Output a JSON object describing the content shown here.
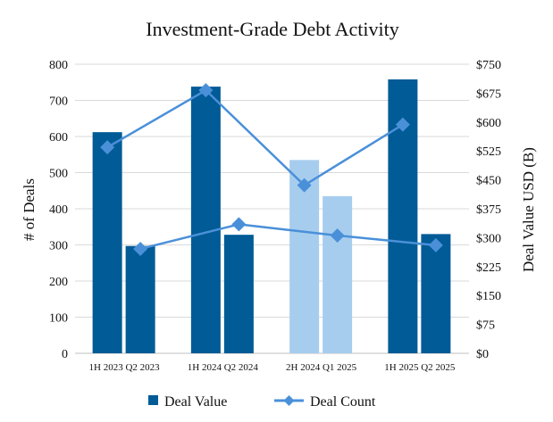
{
  "chart_data": {
    "type": "bar",
    "title": "Investment-Grade Debt Activity",
    "ylabel": "# of Deals",
    "y2label": "Deal Value USD (B)",
    "xlabel": "",
    "ylim": [
      0,
      800
    ],
    "y2lim": [
      0,
      750
    ],
    "left_ticks": [
      "0",
      "100",
      "200",
      "300",
      "400",
      "500",
      "600",
      "700",
      "800"
    ],
    "right_ticks": [
      "$0",
      "$75",
      "$150",
      "$225",
      "$300",
      "$375",
      "$450",
      "$525",
      "$600",
      "$675",
      "$750"
    ],
    "category_labels": [
      "1H 2023 Q2 2023",
      "1H 2024 Q2 2024",
      "2H 2024 Q1 2025",
      "1H 2025 Q2 2025"
    ],
    "categories": [
      "1H 2023",
      "Q2 2023",
      "1H 2024",
      "Q2 2024",
      "2H 2024",
      "Q1 2025",
      "1H 2025",
      "Q2 2025"
    ],
    "bar_colors": [
      "#005b96",
      "#005b96",
      "#005b96",
      "#005b96",
      "#a7cdee",
      "#a7cdee",
      "#005b96",
      "#005b96"
    ],
    "line_color": "#4a90d9",
    "grid": true,
    "legend_position": "bottom",
    "series": [
      {
        "name": "Deal Value",
        "type": "bar",
        "axis": "left",
        "values": [
          612,
          297,
          738,
          328,
          535,
          435,
          758,
          330
        ]
      },
      {
        "name": "Deal Count",
        "type": "line",
        "axis": "left",
        "marker": "diamond",
        "segments": [
          {
            "x": [
              "1H 2023",
              "1H 2024",
              "2H 2024",
              "1H 2025"
            ],
            "values": [
              570,
              728,
              465,
              633
            ]
          },
          {
            "x": [
              "Q2 2023",
              "Q2 2024",
              "Q1 2025",
              "Q2 2025"
            ],
            "values": [
              289,
              357,
              326,
              299
            ]
          }
        ]
      }
    ]
  }
}
